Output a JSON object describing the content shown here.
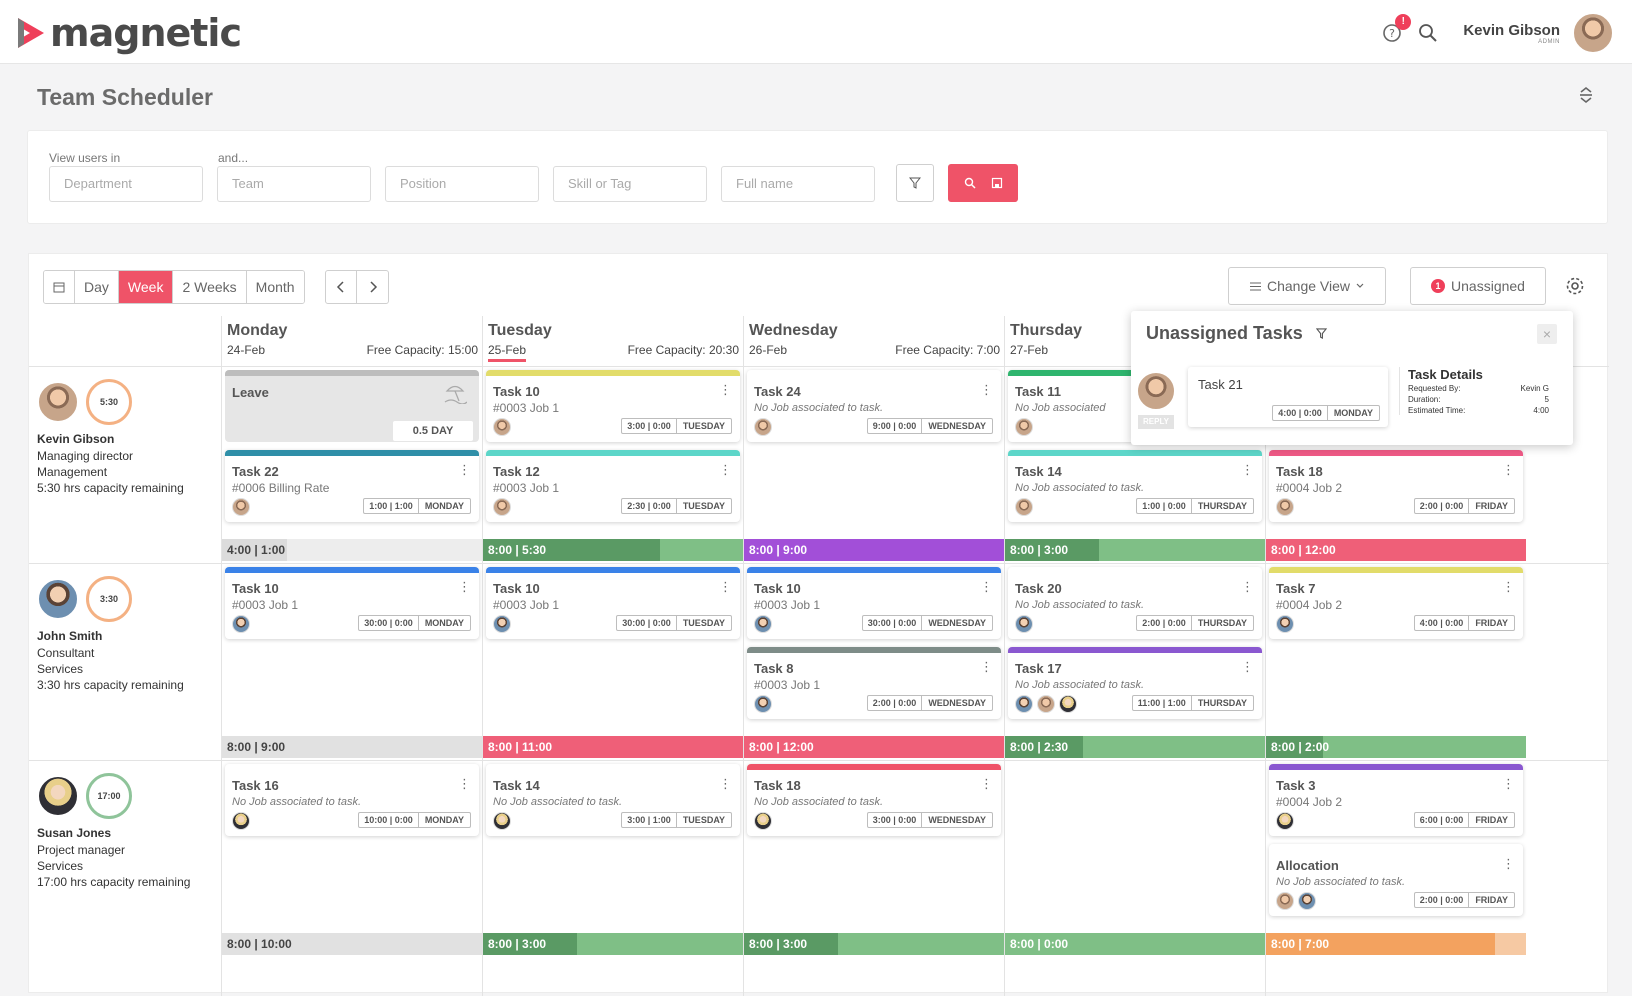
{
  "app": {
    "logo_text": "magnetic"
  },
  "header": {
    "help_badge": "!",
    "user_name": "Kevin Gibson",
    "user_role": "ADMIN"
  },
  "page": {
    "title": "Team Scheduler"
  },
  "filters": {
    "label_view_users": "View users in",
    "label_and": "and...",
    "department_placeholder": "Department",
    "team_placeholder": "Team",
    "position_placeholder": "Position",
    "skill_placeholder": "Skill or Tag",
    "fullname_placeholder": "Full name"
  },
  "toolbar": {
    "views": [
      "Day",
      "Week",
      "2 Weeks",
      "Month"
    ],
    "active_view": "Week",
    "change_view": "Change View",
    "unassigned_count": "1",
    "unassigned_label": "Unassigned"
  },
  "days": [
    {
      "name": "Monday",
      "date": "24-Feb",
      "capacity": "Free Capacity: 15:00"
    },
    {
      "name": "Tuesday",
      "date": "25-Feb",
      "capacity": "Free Capacity: 20:30"
    },
    {
      "name": "Wednesday",
      "date": "26-Feb",
      "capacity": "Free Capacity: 7:00"
    },
    {
      "name": "Thursday",
      "date": "27-Feb",
      "capacity": ""
    },
    {
      "name": "",
      "date": "",
      "capacity": ""
    }
  ],
  "people": [
    {
      "name": "Kevin Gibson",
      "ring": "5:30",
      "position": "Managing director",
      "team": "Management",
      "remaining": "5:30 hrs capacity remaining"
    },
    {
      "name": "John Smith",
      "ring": "3:30",
      "position": "Consultant",
      "team": "Services",
      "remaining": "3:30 hrs capacity remaining"
    },
    {
      "name": "Susan Jones",
      "ring": "17:00",
      "position": "Project manager",
      "team": "Services",
      "remaining": "17:00 hrs capacity remaining"
    }
  ],
  "leave": {
    "title": "Leave",
    "amount": "0.5 DAY"
  },
  "tasks": {
    "r0": [
      {
        "title": "Task 22",
        "sub": "#0006 Billing Rate",
        "hrs": "1:00 | 1:00",
        "day": "MONDAY",
        "bar": "#2f8fa8"
      },
      {
        "title": "Task 10",
        "sub": "#0003 Job 1",
        "hrs": "3:00 | 0:00",
        "day": "TUESDAY",
        "bar": "#e2dc6a"
      },
      {
        "title": "Task 12",
        "sub": "#0003 Job 1",
        "hrs": "2:30 | 0:00",
        "day": "TUESDAY",
        "bar": "#5dd6c9"
      },
      {
        "title": "Task 24",
        "sub": "No Job associated to task.",
        "hrs": "9:00 | 0:00",
        "day": "WEDNESDAY",
        "bar": ""
      },
      {
        "title": "Task 11",
        "sub": "No Job associated",
        "hrs": "",
        "day": "",
        "bar": "#2fb56e"
      },
      {
        "title": "Task 14",
        "sub": "No Job associated to task.",
        "hrs": "1:00 | 0:00",
        "day": "THURSDAY",
        "bar": "#5dd6c9"
      },
      {
        "title": "Task 18",
        "sub": "#0004 Job 2",
        "hrs": "2:00 | 0:00",
        "day": "FRIDAY",
        "bar": "#ef5a86"
      }
    ],
    "r1": [
      {
        "title": "Task 10",
        "sub": "#0003 Job 1",
        "hrs": "30:00 | 0:00",
        "day": "MONDAY",
        "bar": "#3a82e8"
      },
      {
        "title": "Task 10",
        "sub": "#0003 Job 1",
        "hrs": "30:00 | 0:00",
        "day": "TUESDAY",
        "bar": "#3a82e8"
      },
      {
        "title": "Task 10",
        "sub": "#0003 Job 1",
        "hrs": "30:00 | 0:00",
        "day": "WEDNESDAY",
        "bar": "#3a82e8"
      },
      {
        "title": "Task 8",
        "sub": "#0003 Job 1",
        "hrs": "2:00 | 0:00",
        "day": "WEDNESDAY",
        "bar": "#7e8c88"
      },
      {
        "title": "Task 20",
        "sub": "No Job associated to task.",
        "hrs": "2:00 | 0:00",
        "day": "THURSDAY",
        "bar": ""
      },
      {
        "title": "Task 17",
        "sub": "No Job associated to task.",
        "hrs": "11:00 | 1:00",
        "day": "THURSDAY",
        "bar": "#8a58d0"
      },
      {
        "title": "Task 7",
        "sub": "#0004 Job 2",
        "hrs": "4:00 | 0:00",
        "day": "FRIDAY",
        "bar": "#e2dc6a"
      }
    ],
    "r2": [
      {
        "title": "Task 16",
        "sub": "No Job associated to task.",
        "hrs": "10:00 | 0:00",
        "day": "MONDAY",
        "bar": ""
      },
      {
        "title": "Task 14",
        "sub": "No Job associated to task.",
        "hrs": "3:00 | 1:00",
        "day": "TUESDAY",
        "bar": ""
      },
      {
        "title": "Task 18",
        "sub": "No Job associated to task.",
        "hrs": "3:00 | 0:00",
        "day": "WEDNESDAY",
        "bar": "#ef5368"
      },
      {
        "title": "Task 3",
        "sub": "#0004 Job 2",
        "hrs": "6:00 | 0:00",
        "day": "FRIDAY",
        "bar": "#8a58d0"
      },
      {
        "title": "Allocation",
        "sub": "No Job associated to task.",
        "hrs": "2:00 | 0:00",
        "day": "FRIDAY",
        "bar": ""
      }
    ]
  },
  "capbars": [
    [
      {
        "text": "4:00 | 1:00",
        "bg": "#ededed",
        "fill": "#dcdcdc",
        "pct": 25,
        "dark": true
      },
      {
        "text": "8:00 | 5:30",
        "bg": "#7fbf86",
        "fill": "#5a9a64",
        "pct": 68
      },
      {
        "text": "8:00 | 9:00",
        "bg": "#a24fd8",
        "fill": "#a24fd8",
        "pct": 100
      },
      {
        "text": "8:00 | 3:00",
        "bg": "#7fbf86",
        "fill": "#5a9a64",
        "pct": 36
      },
      {
        "text": "8:00 | 12:00",
        "bg": "#ef5f78",
        "fill": "#ef5f78",
        "pct": 100
      }
    ],
    [
      {
        "text": "8:00 | 9:00",
        "bg": "#e1e1e1",
        "fill": "#e1e1e1",
        "pct": 100,
        "dark": true
      },
      {
        "text": "8:00 | 11:00",
        "bg": "#ef5f78",
        "fill": "#ef5f78",
        "pct": 100
      },
      {
        "text": "8:00 | 12:00",
        "bg": "#ef5f78",
        "fill": "#ef5f78",
        "pct": 100
      },
      {
        "text": "8:00 | 2:30",
        "bg": "#7fbf86",
        "fill": "#5a9a64",
        "pct": 30
      },
      {
        "text": "8:00 | 2:00",
        "bg": "#7fbf86",
        "fill": "#5a9a64",
        "pct": 22
      }
    ],
    [
      {
        "text": "8:00 | 10:00",
        "bg": "#e1e1e1",
        "fill": "#e1e1e1",
        "pct": 100,
        "dark": true
      },
      {
        "text": "8:00 | 3:00",
        "bg": "#7fbf86",
        "fill": "#5a9a64",
        "pct": 36
      },
      {
        "text": "8:00 | 3:00",
        "bg": "#7fbf86",
        "fill": "#5a9a64",
        "pct": 36
      },
      {
        "text": "8:00 | 0:00",
        "bg": "#7fbf86",
        "fill": "#7fbf86",
        "pct": 0
      },
      {
        "text": "8:00 | 7:00",
        "bg": "#f6c9a3",
        "fill": "#f3a25f",
        "pct": 88
      }
    ]
  ],
  "popover": {
    "title": "Unassigned Tasks",
    "close": "×",
    "reply": "REPLY",
    "task_title": "Task 21",
    "task_hrs": "4:00 | 0:00",
    "task_day": "MONDAY",
    "details_title": "Task Details",
    "requested_by_label": "Requested By:",
    "requested_by": "Kevin G",
    "duration_label": "Duration:",
    "duration": "5",
    "estimated_label": "Estimated Time:",
    "estimated": "4:00"
  }
}
